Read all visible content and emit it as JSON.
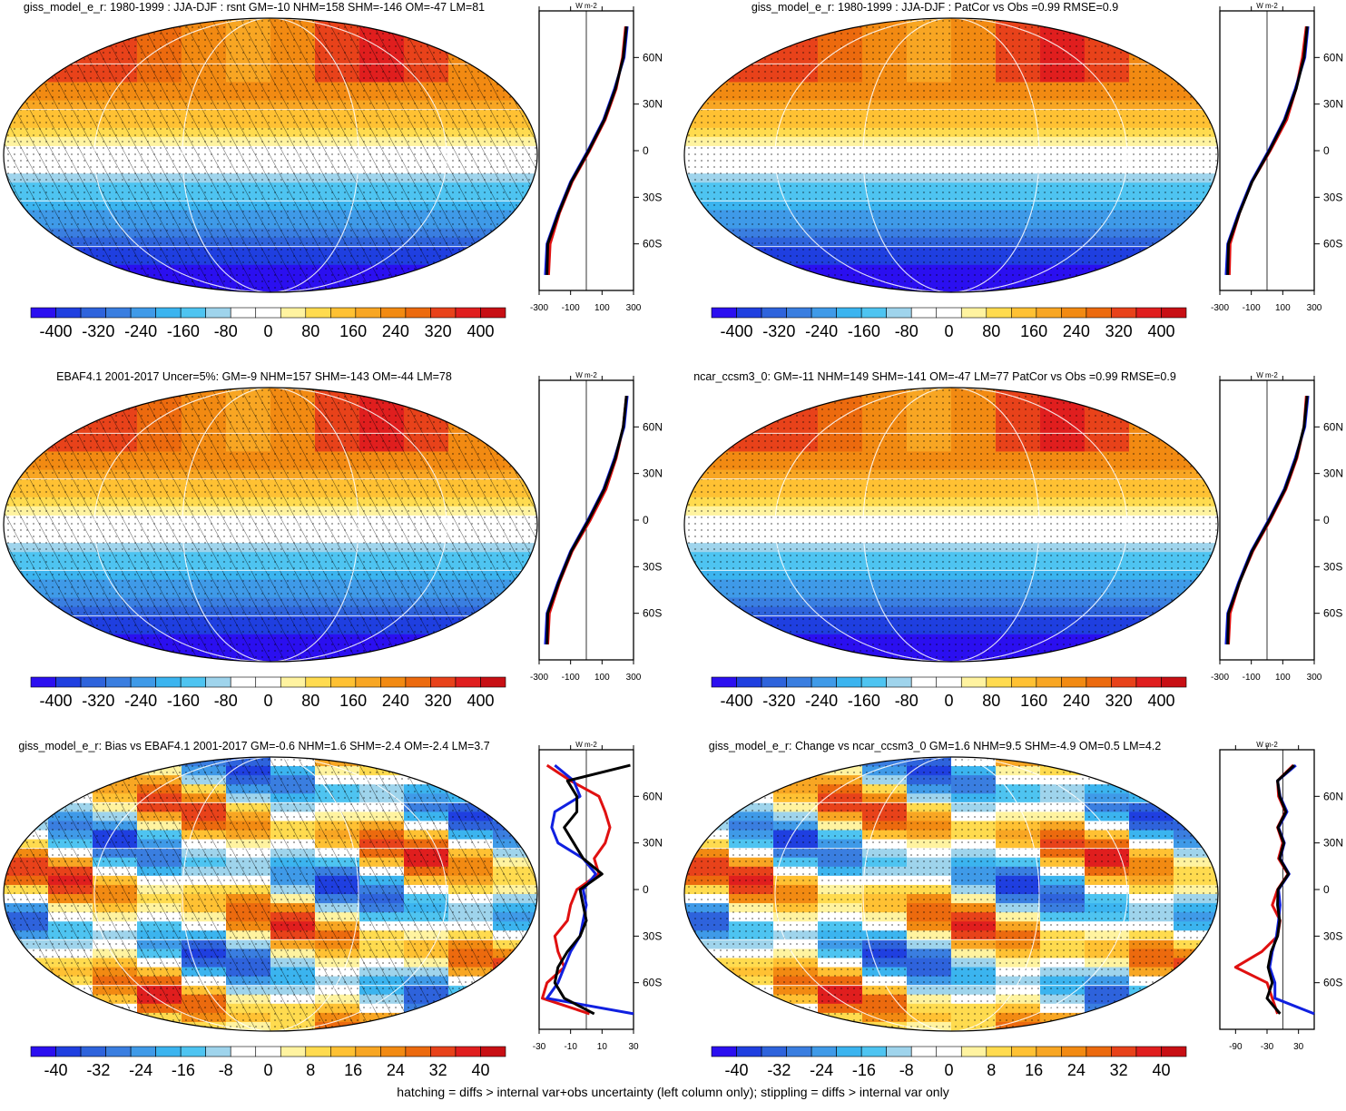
{
  "footer": "hatching = diffs > internal var+obs uncertainty (left column only); stippling = diffs > internal var only",
  "colorbar_colors": [
    "#2b0ff0",
    "#1f3fe0",
    "#2e63dc",
    "#3a7ee0",
    "#3f9ae8",
    "#3bb4ef",
    "#4ec4f1",
    "#9fd4ec",
    "#ffffff",
    "#ffffff",
    "#fff3a0",
    "#ffdb4f",
    "#ffc133",
    "#f8a623",
    "#f28a12",
    "#ec6a0e",
    "#e8421a",
    "#e01e1e",
    "#c80f14"
  ],
  "latitude_labels": [
    "60N",
    "30N",
    "0",
    "30S",
    "60S"
  ],
  "unit_label": "W m-2",
  "chart_data": [
    {
      "type": "heatmap",
      "title": "giss_model_e_r: 1980-1999 : JJA-DJF : rsnt GM=-10 NHM=158 SHM=-146 OM=-47 LM=81",
      "colorbar_ticks": [
        "-400",
        "-320",
        "-240",
        "-160",
        "-80",
        "0",
        "80",
        "160",
        "240",
        "320",
        "400"
      ],
      "colorbar_range": [
        -400,
        400
      ],
      "zonal_xticks": [
        "-300",
        "-100",
        "100",
        "300"
      ],
      "zonal_xlim": [
        -300,
        300
      ],
      "hatching": true,
      "stippling": true,
      "field": "seasonal",
      "zonal": {
        "lat": [
          80,
          60,
          40,
          20,
          0,
          -20,
          -40,
          -60,
          -80
        ],
        "series": [
          {
            "color": "#e01010",
            "values": [
              250,
              230,
              190,
              120,
              20,
              -90,
              -170,
              -230,
              -240
            ]
          },
          {
            "color": "#1020e0",
            "values": [
              260,
              240,
              180,
              110,
              10,
              -100,
              -180,
              -250,
              -260
            ]
          },
          {
            "color": "#000000",
            "values": [
              255,
              235,
              185,
              115,
              15,
              -95,
              -175,
              -245,
              -250
            ]
          }
        ]
      }
    },
    {
      "type": "heatmap",
      "title": "giss_model_e_r: 1980-1999 : JJA-DJF : PatCor vs Obs =0.99 RMSE=0.9",
      "colorbar_ticks": [
        "-400",
        "-320",
        "-240",
        "-160",
        "-80",
        "0",
        "80",
        "160",
        "240",
        "320",
        "400"
      ],
      "colorbar_range": [
        -400,
        400
      ],
      "zonal_xticks": [
        "-300",
        "-100",
        "100",
        "300"
      ],
      "zonal_xlim": [
        -300,
        300
      ],
      "hatching": false,
      "stippling": true,
      "field": "seasonal",
      "zonal": {
        "lat": [
          80,
          60,
          40,
          20,
          0,
          -20,
          -40,
          -60,
          -80
        ],
        "series": [
          {
            "color": "#e01010",
            "values": [
              250,
              225,
              185,
              125,
              20,
              -95,
              -175,
              -235,
              -240
            ]
          },
          {
            "color": "#1020e0",
            "values": [
              260,
              240,
              180,
              110,
              10,
              -100,
              -180,
              -250,
              -260
            ]
          },
          {
            "color": "#000000",
            "values": [
              255,
              235,
              185,
              115,
              15,
              -95,
              -175,
              -245,
              -250
            ]
          }
        ]
      }
    },
    {
      "type": "heatmap",
      "title": "EBAF4.1 2001-2017 Uncer=5%: GM=-9 NHM=157 SHM=-143 OM=-44 LM=78",
      "colorbar_ticks": [
        "-400",
        "-320",
        "-240",
        "-160",
        "-80",
        "0",
        "80",
        "160",
        "240",
        "320",
        "400"
      ],
      "colorbar_range": [
        -400,
        400
      ],
      "zonal_xticks": [
        "-300",
        "-100",
        "100",
        "300"
      ],
      "zonal_xlim": [
        -300,
        300
      ],
      "hatching": true,
      "stippling": true,
      "field": "seasonal",
      "zonal": {
        "lat": [
          80,
          60,
          40,
          20,
          0,
          -20,
          -40,
          -60,
          -80
        ],
        "series": [
          {
            "color": "#e01010",
            "values": [
              255,
              235,
              190,
              125,
              25,
              -90,
              -170,
              -235,
              -245
            ]
          },
          {
            "color": "#1020e0",
            "values": [
              260,
              240,
              180,
              110,
              10,
              -100,
              -180,
              -250,
              -260
            ]
          },
          {
            "color": "#000000",
            "values": [
              255,
              235,
              185,
              115,
              15,
              -95,
              -175,
              -245,
              -250
            ]
          }
        ]
      }
    },
    {
      "type": "heatmap",
      "title": "ncar_ccsm3_0: GM=-11 NHM=149 SHM=-141 OM=-47 LM=77 PatCor vs Obs =0.99 RMSE=0.9",
      "colorbar_ticks": [
        "-400",
        "-320",
        "-240",
        "-160",
        "-80",
        "0",
        "80",
        "160",
        "240",
        "320",
        "400"
      ],
      "colorbar_range": [
        -400,
        400
      ],
      "zonal_xticks": [
        "-300",
        "-100",
        "100",
        "300"
      ],
      "zonal_xlim": [
        -300,
        300
      ],
      "hatching": false,
      "stippling": true,
      "field": "seasonal",
      "zonal": {
        "lat": [
          80,
          60,
          40,
          20,
          0,
          -20,
          -40,
          -60,
          -80
        ],
        "series": [
          {
            "color": "#e01010",
            "values": [
              250,
              235,
              190,
              120,
              20,
              -90,
              -175,
              -235,
              -245
            ]
          },
          {
            "color": "#1020e0",
            "values": [
              260,
              240,
              180,
              110,
              10,
              -100,
              -180,
              -250,
              -260
            ]
          },
          {
            "color": "#000000",
            "values": [
              255,
              235,
              185,
              115,
              15,
              -95,
              -175,
              -245,
              -250
            ]
          }
        ]
      }
    },
    {
      "type": "heatmap",
      "title": "giss_model_e_r: Bias vs EBAF4.1 2001-2017 GM=-0.6 NHM=1.6 SHM=-2.4 OM=-2.4 LM=3.7",
      "colorbar_ticks": [
        "-40",
        "-32",
        "-24",
        "-16",
        "-8",
        "0",
        "8",
        "16",
        "24",
        "32",
        "40"
      ],
      "colorbar_range": [
        -40,
        40
      ],
      "zonal_xticks": [
        "-30",
        "-10",
        "10",
        "30"
      ],
      "zonal_xlim": [
        -30,
        30
      ],
      "hatching": true,
      "stippling": true,
      "field": "bias",
      "zonal": {
        "lat": [
          80,
          70,
          60,
          50,
          40,
          30,
          20,
          10,
          0,
          -10,
          -20,
          -30,
          -40,
          -50,
          -60,
          -70,
          -80
        ],
        "series": [
          {
            "color": "#e01010",
            "values": [
              -25,
              -10,
              8,
              12,
              15,
              12,
              5,
              8,
              -6,
              -10,
              -12,
              -20,
              -18,
              -14,
              -25,
              -28,
              2
            ]
          },
          {
            "color": "#1020e0",
            "values": [
              -20,
              -8,
              -4,
              -20,
              -22,
              -18,
              -2,
              6,
              -2,
              0,
              -2,
              -4,
              -10,
              -14,
              -18,
              -25,
              30
            ]
          },
          {
            "color": "#000000",
            "values": [
              28,
              -12,
              -6,
              -6,
              -14,
              -8,
              -2,
              10,
              -4,
              -2,
              0,
              -4,
              -12,
              -18,
              -20,
              -14,
              5
            ]
          }
        ]
      }
    },
    {
      "type": "heatmap",
      "title": "giss_model_e_r: Change vs ncar_ccsm3_0 GM=1.6 NHM=9.5 SHM=-4.9 OM=0.5 LM=4.2",
      "colorbar_ticks": [
        "-40",
        "-32",
        "-24",
        "-16",
        "-8",
        "0",
        "8",
        "16",
        "24",
        "32",
        "40"
      ],
      "colorbar_range": [
        -40,
        40
      ],
      "zonal_xticks": [
        "-90",
        "-30",
        "30"
      ],
      "zonal_xlim": [
        -120,
        60
      ],
      "hatching": false,
      "stippling": true,
      "field": "change",
      "zonal": {
        "lat": [
          80,
          70,
          60,
          50,
          40,
          30,
          20,
          10,
          0,
          -10,
          -20,
          -30,
          -40,
          -50,
          -60,
          -70,
          -80
        ],
        "series": [
          {
            "color": "#e01010",
            "values": [
              20,
              -10,
              -8,
              5,
              -10,
              0,
              -8,
              10,
              -10,
              -20,
              -5,
              -10,
              -40,
              -90,
              -30,
              -20,
              -10
            ]
          },
          {
            "color": "#1020e0",
            "values": [
              25,
              -10,
              -5,
              8,
              -8,
              3,
              -5,
              12,
              -8,
              -5,
              -8,
              -12,
              -20,
              -25,
              -15,
              -15,
              60
            ]
          },
          {
            "color": "#000000",
            "values": [
              22,
              -10,
              -6,
              6,
              -9,
              2,
              -6,
              11,
              -9,
              -10,
              -6,
              -10,
              -22,
              -28,
              -20,
              -30,
              -5
            ]
          }
        ]
      }
    }
  ]
}
